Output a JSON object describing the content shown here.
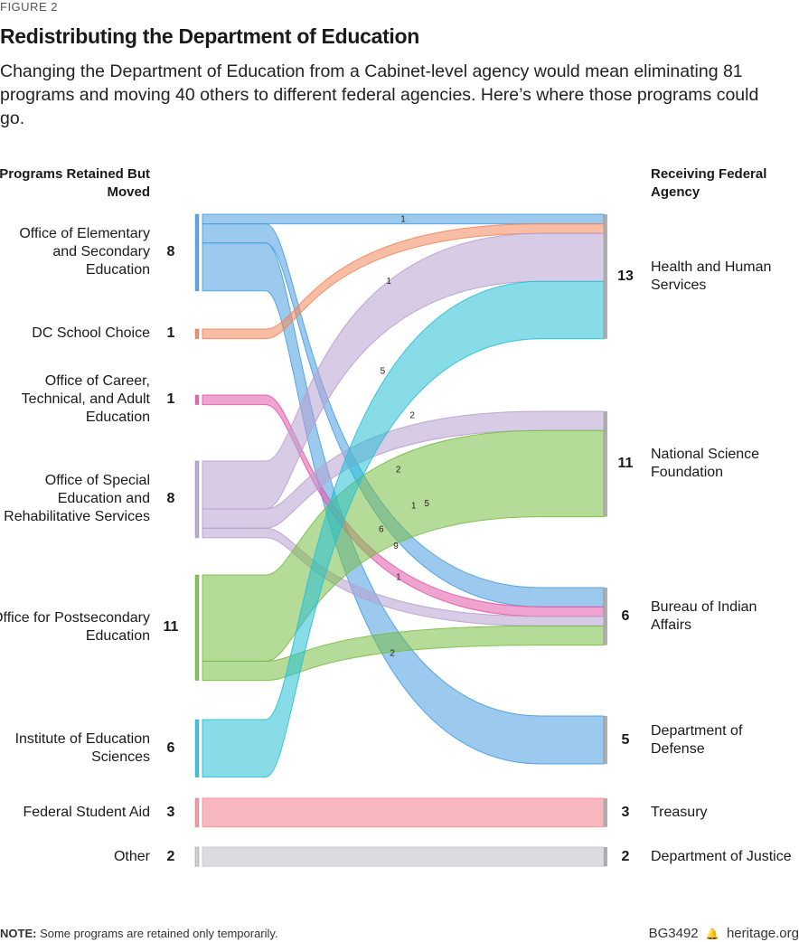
{
  "header": {
    "figure_label": "FIGURE 2",
    "title": "Redistributing the Department of Education",
    "subtitle": "Changing the Department of Education from a Cabinet-level agency would mean eliminating 81 programs and moving 40 others to different federal agencies. Here’s where those programs could go.",
    "left_heading": "Programs Retained But Moved",
    "right_heading": "Receiving Federal Agency"
  },
  "sources": [
    {
      "id": "oese",
      "label": "Office of Elementary and Secondary Education",
      "count": "8",
      "color": "#4a9ee0"
    },
    {
      "id": "dcsc",
      "label": "DC School Choice",
      "count": "1",
      "color": "#f2875a"
    },
    {
      "id": "octae",
      "label": "Office of Career, Technical, and Adult Education",
      "count": "1",
      "color": "#e25aa8"
    },
    {
      "id": "osers",
      "label": "Office of Special Education and Rehabilitative Services",
      "count": "8",
      "color": "#b7a1cf"
    },
    {
      "id": "ope",
      "label": "Office for Postsecondary Education",
      "count": "11",
      "color": "#78bd45"
    },
    {
      "id": "ies",
      "label": "Institute of Education Sciences",
      "count": "6",
      "color": "#27c0d6"
    },
    {
      "id": "fsa",
      "label": "Federal Student Aid",
      "count": "3",
      "color": "#f2909b"
    },
    {
      "id": "other",
      "label": "Other",
      "count": "2",
      "color": "#c9cacf"
    }
  ],
  "targets": [
    {
      "id": "hhs",
      "label": "Health and Human Services",
      "count": "13"
    },
    {
      "id": "nsf",
      "label": "National Science Foundation",
      "count": "11"
    },
    {
      "id": "bia",
      "label": "Bureau of Indian Affairs",
      "count": "6"
    },
    {
      "id": "dod",
      "label": "Department of Defense",
      "count": "5"
    },
    {
      "id": "treasury",
      "label": "Treasury",
      "count": "3"
    },
    {
      "id": "doj",
      "label": "Department of Justice",
      "count": "2"
    }
  ],
  "flows": [
    {
      "source": "oese",
      "target": "hhs",
      "value": 1,
      "label": "1"
    },
    {
      "source": "oese",
      "target": "bia",
      "value": 2,
      "label": "2"
    },
    {
      "source": "oese",
      "target": "dod",
      "value": 5,
      "label": "5"
    },
    {
      "source": "dcsc",
      "target": "hhs",
      "value": 1,
      "label": "1"
    },
    {
      "source": "octae",
      "target": "bia",
      "value": 1,
      "label": "1"
    },
    {
      "source": "osers",
      "target": "hhs",
      "value": 5,
      "label": "5"
    },
    {
      "source": "osers",
      "target": "nsf",
      "value": 2,
      "label": "2"
    },
    {
      "source": "osers",
      "target": "bia",
      "value": 1,
      "label": "1"
    },
    {
      "source": "ope",
      "target": "nsf",
      "value": 9,
      "label": "9"
    },
    {
      "source": "ope",
      "target": "bia",
      "value": 2,
      "label": "2"
    },
    {
      "source": "ies",
      "target": "hhs",
      "value": 6,
      "label": "6"
    },
    {
      "source": "fsa",
      "target": "treasury",
      "value": 3,
      "label": ""
    },
    {
      "source": "other",
      "target": "doj",
      "value": 2,
      "label": ""
    }
  ],
  "footer": {
    "note_label": "NOTE:",
    "note_text": "Some programs are retained only temporarily.",
    "code": "BG3492",
    "bell_icon": "liberty-bell-icon",
    "site": "heritage.org"
  }
}
